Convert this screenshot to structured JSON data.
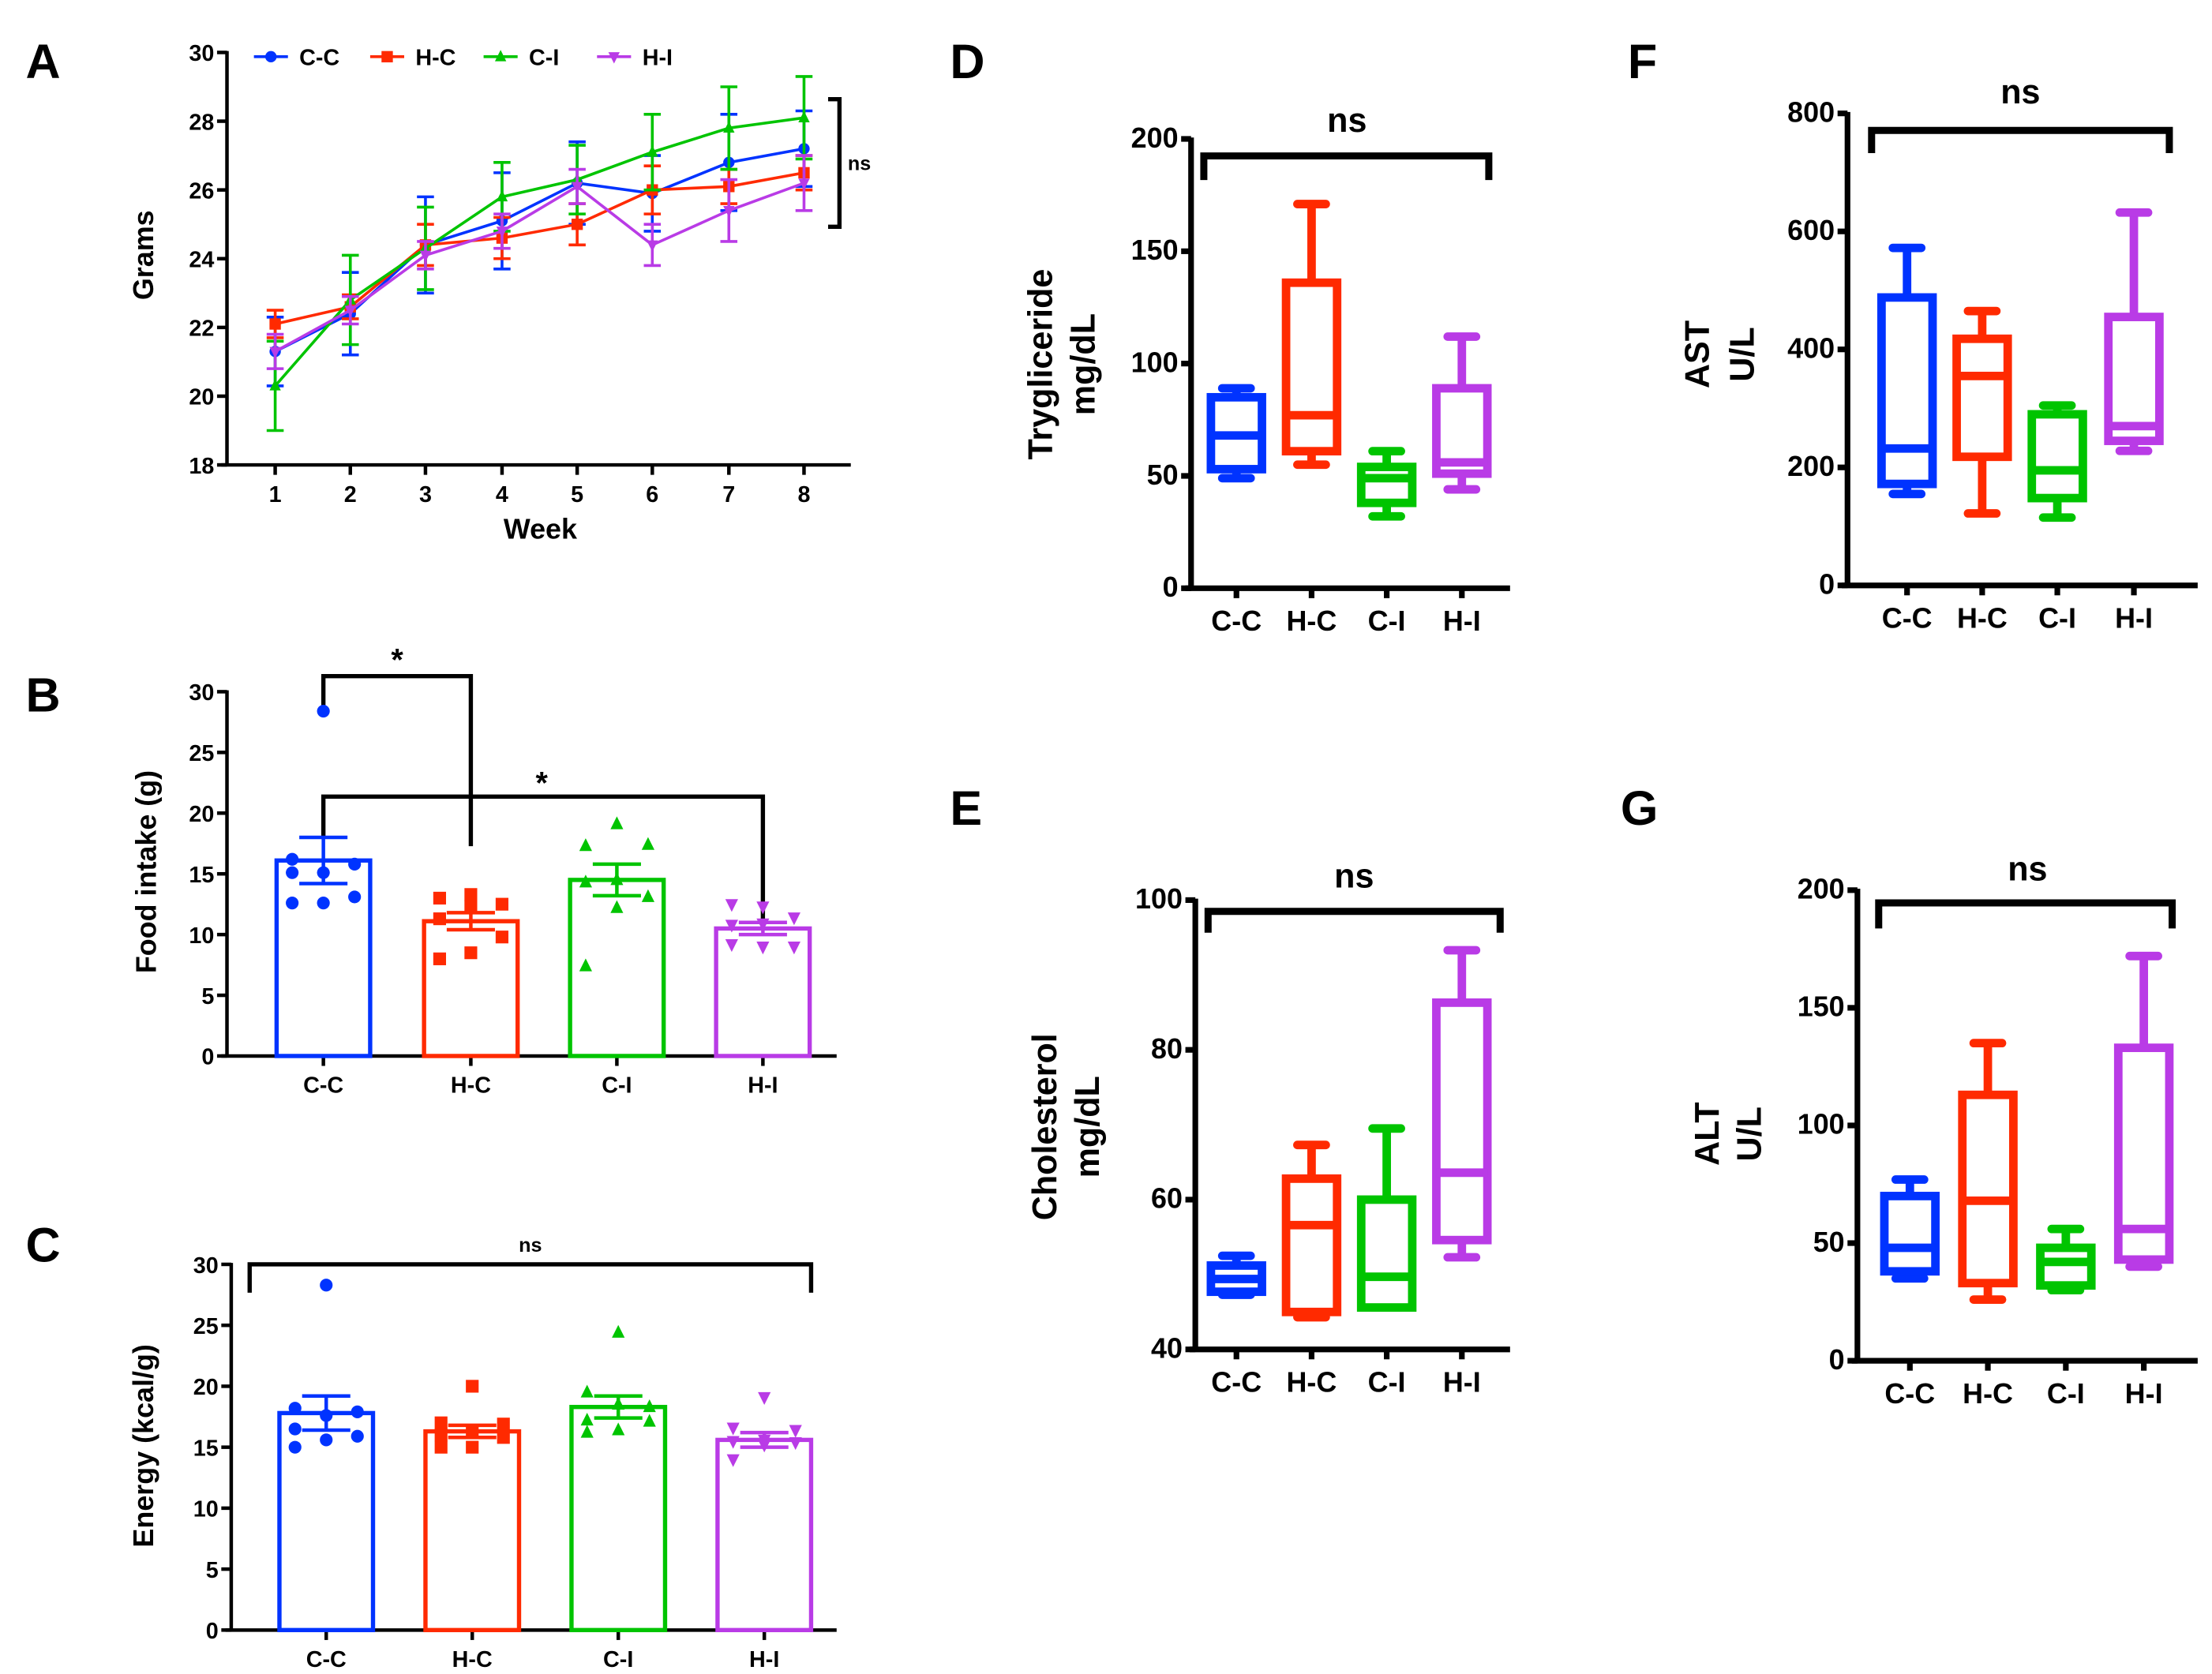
{
  "colors": {
    "C-C": "#0033ff",
    "H-C": "#ff2a00",
    "C-I": "#00c400",
    "H-I": "#b93be6"
  },
  "chart_data": [
    {
      "panel": "A",
      "type": "line",
      "xlabel": "Week",
      "ylabel": [
        "Grams"
      ],
      "ylim": [
        18,
        30
      ],
      "yticks": [
        "18",
        "20",
        "22",
        "24",
        "26",
        "28",
        "30"
      ],
      "x": [
        "1",
        "2",
        "3",
        "4",
        "5",
        "6",
        "7",
        "8"
      ],
      "legend_position": "top",
      "series": [
        {
          "name": "C-C",
          "marker": "circle",
          "values": [
            21.3,
            22.4,
            24.4,
            25.1,
            26.2,
            25.9,
            26.8,
            27.2
          ],
          "err": [
            1.0,
            1.2,
            1.4,
            1.4,
            1.2,
            1.1,
            1.4,
            1.1
          ]
        },
        {
          "name": "H-C",
          "marker": "square",
          "values": [
            22.1,
            22.6,
            24.4,
            24.6,
            25.0,
            26.0,
            26.1,
            26.5
          ],
          "err": [
            0.4,
            0.35,
            0.6,
            0.6,
            0.6,
            0.7,
            0.5,
            0.5
          ]
        },
        {
          "name": "C-I",
          "marker": "triangle-up",
          "values": [
            20.3,
            22.8,
            24.3,
            25.8,
            26.3,
            27.1,
            27.8,
            28.1
          ],
          "err": [
            1.3,
            1.3,
            1.2,
            1.0,
            1.0,
            1.1,
            1.2,
            1.2
          ]
        },
        {
          "name": "H-I",
          "marker": "triangle-down",
          "values": [
            21.3,
            22.5,
            24.1,
            24.8,
            26.1,
            24.4,
            25.4,
            26.2
          ],
          "err": [
            0.5,
            0.4,
            0.4,
            0.5,
            0.5,
            0.6,
            0.9,
            0.8
          ]
        }
      ],
      "annotations": [
        "ns"
      ]
    },
    {
      "panel": "B",
      "type": "bar",
      "xlabel": "",
      "ylabel": [
        "Food intake (g)"
      ],
      "ylim": [
        0,
        30
      ],
      "yticks": [
        "0",
        "5",
        "10",
        "15",
        "20",
        "25",
        "30"
      ],
      "categories": [
        "C-C",
        "H-C",
        "C-I",
        "H-I"
      ],
      "values": [
        16.1,
        11.1,
        14.5,
        10.5
      ],
      "sem": [
        1.9,
        0.7,
        1.3,
        0.5
      ],
      "points": [
        [
          28.4,
          16.2,
          15.8,
          15.1,
          15.1,
          13.1,
          12.6,
          12.6
        ],
        [
          13.3,
          13.0,
          12.5,
          12.3,
          11.3,
          9.8,
          8.5,
          8.0
        ],
        [
          19.1,
          17.3,
          17.4,
          14.5,
          14.3,
          13.1,
          12.2,
          7.4
        ],
        [
          12.3,
          12.5,
          11.4,
          10.9,
          10.8,
          9.0,
          9.0,
          9.2
        ]
      ],
      "annotations": [
        "*",
        "*"
      ]
    },
    {
      "panel": "C",
      "type": "bar",
      "xlabel": "",
      "ylabel": [
        "Energy (kcal/g)"
      ],
      "ylim": [
        0,
        30
      ],
      "yticks": [
        "0",
        "5",
        "10",
        "15",
        "20",
        "25",
        "30"
      ],
      "categories": [
        "C-C",
        "H-C",
        "C-I",
        "H-I"
      ],
      "values": [
        17.8,
        16.3,
        18.3,
        15.6
      ],
      "sem": [
        1.4,
        0.5,
        0.9,
        0.6
      ],
      "points": [
        [
          28.3,
          18.2,
          17.9,
          17.6,
          16.5,
          15.9,
          15.6,
          15.0
        ],
        [
          20.0,
          17.0,
          16.9,
          16.2,
          16.0,
          15.8,
          15.0,
          15.0
        ],
        [
          24.4,
          19.5,
          18.3,
          18.5,
          17.2,
          17.1,
          16.4,
          16.2
        ],
        [
          19.1,
          16.6,
          16.4,
          15.6,
          15.5,
          15.4,
          15.2,
          14.0
        ]
      ],
      "annotations": [
        "ns"
      ]
    },
    {
      "panel": "D",
      "type": "box",
      "xlabel": "",
      "ylabel": [
        "Trygliceride",
        "mg/dL"
      ],
      "ylim": [
        0,
        200
      ],
      "yticks": [
        "0",
        "50",
        "100",
        "150",
        "200"
      ],
      "categories": [
        "C-C",
        "H-C",
        "C-I",
        "H-I"
      ],
      "boxes": [
        [
          49,
          53,
          68,
          85,
          89
        ],
        [
          55,
          61,
          77,
          136,
          171
        ],
        [
          32,
          38,
          49,
          54,
          61
        ],
        [
          44,
          51,
          56,
          89,
          112
        ]
      ],
      "annotations": [
        "ns"
      ]
    },
    {
      "panel": "E",
      "type": "box",
      "xlabel": "",
      "ylabel": [
        "Cholesterol",
        "mg/dL"
      ],
      "ylim": [
        40,
        100
      ],
      "yticks": [
        "40",
        "60",
        "80",
        "100"
      ],
      "categories": [
        "C-C",
        "H-C",
        "C-I",
        "H-I"
      ],
      "boxes": [
        [
          47.3,
          47.7,
          49.4,
          51.2,
          52.5
        ],
        [
          44.3,
          45.0,
          56.6,
          62.8,
          67.3
        ],
        [
          45.6,
          45.6,
          49.7,
          60.0,
          69.5
        ],
        [
          52.3,
          54.6,
          63.6,
          86.3,
          93.3
        ]
      ],
      "annotations": [
        "ns"
      ]
    },
    {
      "panel": "F",
      "type": "box",
      "xlabel": "",
      "ylabel": [
        "AST",
        "U/L"
      ],
      "ylim": [
        0,
        800
      ],
      "yticks": [
        "0",
        "200",
        "400",
        "600",
        "800"
      ],
      "categories": [
        "C-C",
        "H-C",
        "C-I",
        "H-I"
      ],
      "boxes": [
        [
          155,
          172,
          232,
          488,
          572
        ],
        [
          122,
          218,
          355,
          418,
          465
        ],
        [
          115,
          148,
          195,
          290,
          305
        ],
        [
          228,
          245,
          270,
          455,
          632
        ]
      ],
      "annotations": [
        "ns"
      ]
    },
    {
      "panel": "G",
      "type": "box",
      "xlabel": "",
      "ylabel": [
        "ALT",
        "U/L"
      ],
      "ylim": [
        0,
        200
      ],
      "yticks": [
        "0",
        "50",
        "100",
        "150",
        "200"
      ],
      "categories": [
        "C-C",
        "H-C",
        "C-I",
        "H-I"
      ],
      "boxes": [
        [
          35,
          38,
          48,
          70,
          77
        ],
        [
          26,
          33,
          68,
          113,
          135
        ],
        [
          30,
          32,
          42,
          48,
          56
        ],
        [
          40,
          43,
          56,
          133,
          172
        ]
      ],
      "annotations": [
        "ns"
      ]
    }
  ]
}
